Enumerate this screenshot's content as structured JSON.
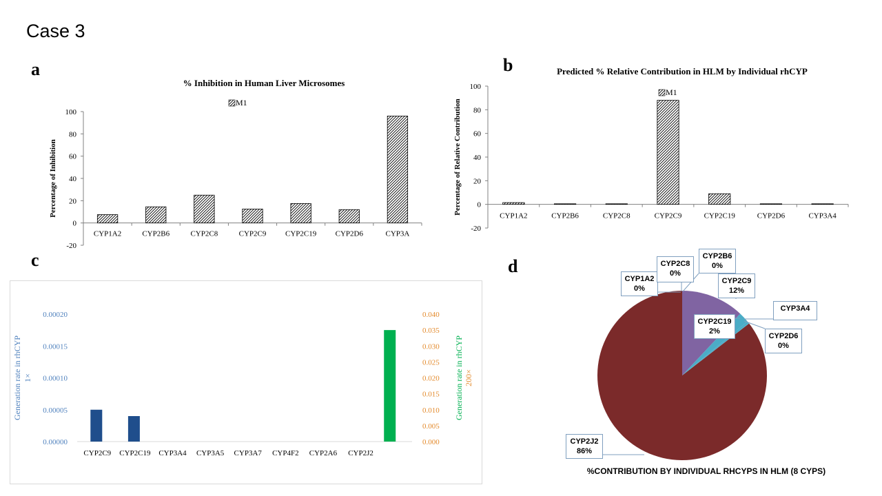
{
  "slide": {
    "title": "Case 3",
    "panels": {
      "a": "a",
      "b": "b",
      "c": "c",
      "d": "d"
    }
  },
  "colors": {
    "bar_blue": "#1f4e8c",
    "bar_green": "#00b050",
    "axis_blue": "#4f81bd",
    "axis_orange": "#e38a2c",
    "pie_maroon": "#7b2a2a",
    "pie_purple": "#8064a2",
    "pie_teal": "#4bacc6"
  },
  "chart_data": [
    {
      "id": "a",
      "type": "bar",
      "title": "% Inhibition  in  Human Liver Microsomes",
      "ylabel": "Percentage of Inhibition",
      "xlabel": "",
      "legend": "M1",
      "legend_position": "top-center",
      "ylim": [
        -20,
        100
      ],
      "yticks": [
        -20,
        0,
        20,
        40,
        60,
        80,
        100
      ],
      "categories": [
        "CYP1A2",
        "CYP2B6",
        "CYP2C8",
        "CYP2C9",
        "CYP2C19",
        "CYP2D6",
        "CYP3A"
      ],
      "series": [
        {
          "name": "M1",
          "values": [
            7.5,
            14.5,
            25,
            12.5,
            17.5,
            12,
            96
          ]
        }
      ],
      "pattern": "diagonal-hatch",
      "grid": false
    },
    {
      "id": "b",
      "type": "bar",
      "title": "Predicted  % Relative Contribution  in HLM by Individual  rhCYP",
      "ylabel": "Percentage of Relative Contribution",
      "xlabel": "",
      "legend": "M1",
      "legend_position": "top-center",
      "ylim": [
        -20,
        100
      ],
      "yticks": [
        -20,
        0,
        20,
        40,
        60,
        80,
        100
      ],
      "categories": [
        "CYP1A2",
        "CYP2B6",
        "CYP2C8",
        "CYP2C9",
        "CYP2C19",
        "CYP2D6",
        "CYP3A4"
      ],
      "series": [
        {
          "name": "M1",
          "values": [
            1.5,
            0.5,
            0.5,
            88,
            9,
            0.5,
            0.5
          ]
        }
      ],
      "pattern": "diagonal-hatch",
      "grid": false
    },
    {
      "id": "c",
      "type": "bar",
      "ylabel_left": "Generation rate in rhCYP",
      "ylabel_left_sub": "1×",
      "ylabel_right": "Generation rate in rhCYP",
      "ylabel_right_sub": "200×",
      "ylim_left": [
        0,
        0.0002
      ],
      "yticks_left": [
        "0.00000",
        "0.00005",
        "0.00010",
        "0.00015",
        "0.00020"
      ],
      "ylim_right": [
        0,
        0.04
      ],
      "yticks_right": [
        "0.000",
        "0.005",
        "0.010",
        "0.015",
        "0.020",
        "0.025",
        "0.030",
        "0.035",
        "0.040"
      ],
      "categories": [
        "CYP2C9",
        "CYP2C19",
        "CYP3A4",
        "CYP3A5",
        "CYP3A7",
        "CYP4F2",
        "CYP2A6",
        "CYP2J2"
      ],
      "series": [
        {
          "axis": "left",
          "values": [
            5e-05,
            4e-05,
            0,
            0,
            0,
            0,
            0,
            0
          ]
        },
        {
          "axis": "right",
          "values": [
            0,
            0,
            0,
            0,
            0,
            0,
            0,
            0.035
          ]
        }
      ],
      "grid": false
    },
    {
      "id": "d",
      "type": "pie",
      "title": "%CONTRIBUTION BY INDIVIDUAL RHCYPS IN HLM (8 CYPS)",
      "slices": [
        {
          "label": "CYP2C9",
          "pct_text": "12%",
          "value": 12
        },
        {
          "label": "CYP2C19",
          "pct_text": "2%",
          "value": 2
        },
        {
          "label": "CYP3A4",
          "pct_text": "",
          "value": 0.4
        },
        {
          "label": "CYP2D6",
          "pct_text": "0%",
          "value": 0.1
        },
        {
          "label": "CYP2J2",
          "pct_text": "86%",
          "value": 85.5
        },
        {
          "label": "CYP1A2",
          "pct_text": "0%",
          "value": 0
        },
        {
          "label": "CYP2C8",
          "pct_text": "0%",
          "value": 0
        },
        {
          "label": "CYP2B6",
          "pct_text": "0%",
          "value": 0
        }
      ]
    }
  ]
}
